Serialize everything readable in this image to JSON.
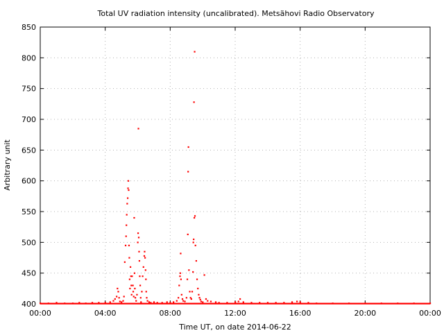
{
  "chart_data": {
    "type": "scatter",
    "title": "Total UV radiation intensity (uncalibrated). Metsähovi Radio Observatory",
    "xlabel": "Time UT, on date 2014-06-22",
    "ylabel": "Arbitrary unit",
    "xlim": [
      0,
      24
    ],
    "ylim": [
      400,
      850
    ],
    "xticks": [
      0,
      4,
      8,
      12,
      16,
      20,
      24
    ],
    "xtick_labels": [
      "00:00",
      "04:00",
      "08:00",
      "12:00",
      "16:00",
      "20:00",
      "00:00"
    ],
    "yticks": [
      400,
      450,
      500,
      550,
      600,
      650,
      700,
      750,
      800,
      850
    ],
    "ytick_labels": [
      "400",
      "450",
      "500",
      "550",
      "600",
      "650",
      "700",
      "750",
      "800",
      "850"
    ],
    "grid": true,
    "color": "#ff0000",
    "series": [
      {
        "points": [
          [
            0.0,
            401
          ],
          [
            0.5,
            401
          ],
          [
            1.0,
            402
          ],
          [
            1.5,
            401
          ],
          [
            2.0,
            401
          ],
          [
            2.4,
            402
          ],
          [
            2.8,
            401
          ],
          [
            3.2,
            402
          ],
          [
            3.6,
            402
          ],
          [
            4.0,
            402
          ],
          [
            4.3,
            403
          ],
          [
            4.5,
            405
          ],
          [
            4.6,
            408
          ],
          [
            4.7,
            412
          ],
          [
            4.75,
            425
          ],
          [
            4.8,
            420
          ],
          [
            4.85,
            410
          ],
          [
            4.9,
            404
          ],
          [
            5.0,
            403
          ],
          [
            5.1,
            405
          ],
          [
            5.15,
            412
          ],
          [
            5.2,
            468
          ],
          [
            5.25,
            495
          ],
          [
            5.28,
            510
          ],
          [
            5.3,
            528
          ],
          [
            5.32,
            545
          ],
          [
            5.35,
            563
          ],
          [
            5.38,
            572
          ],
          [
            5.4,
            588
          ],
          [
            5.42,
            600
          ],
          [
            5.44,
            585
          ],
          [
            5.46,
            495
          ],
          [
            5.48,
            475
          ],
          [
            5.5,
            440
          ],
          [
            5.52,
            425
          ],
          [
            5.55,
            460
          ],
          [
            5.58,
            445
          ],
          [
            5.6,
            430
          ],
          [
            5.62,
            415
          ],
          [
            5.65,
            445
          ],
          [
            5.7,
            430
          ],
          [
            5.72,
            420
          ],
          [
            5.75,
            412
          ],
          [
            5.78,
            540
          ],
          [
            5.8,
            450
          ],
          [
            5.82,
            425
          ],
          [
            5.85,
            410
          ],
          [
            5.9,
            405
          ],
          [
            5.95,
            415
          ],
          [
            6.0,
            500
          ],
          [
            6.02,
            515
          ],
          [
            6.04,
            685
          ],
          [
            6.06,
            508
          ],
          [
            6.08,
            485
          ],
          [
            6.1,
            470
          ],
          [
            6.12,
            445
          ],
          [
            6.15,
            430
          ],
          [
            6.18,
            410
          ],
          [
            6.2,
            403
          ],
          [
            6.25,
            420
          ],
          [
            6.3,
            445
          ],
          [
            6.35,
            460
          ],
          [
            6.4,
            478
          ],
          [
            6.42,
            485
          ],
          [
            6.45,
            475
          ],
          [
            6.48,
            455
          ],
          [
            6.5,
            440
          ],
          [
            6.52,
            420
          ],
          [
            6.55,
            410
          ],
          [
            6.6,
            405
          ],
          [
            6.7,
            403
          ],
          [
            6.8,
            402
          ],
          [
            7.0,
            403
          ],
          [
            7.2,
            402
          ],
          [
            7.5,
            402
          ],
          [
            7.8,
            403
          ],
          [
            8.0,
            402
          ],
          [
            8.2,
            403
          ],
          [
            8.4,
            405
          ],
          [
            8.5,
            410
          ],
          [
            8.55,
            430
          ],
          [
            8.6,
            445
          ],
          [
            8.62,
            450
          ],
          [
            8.64,
            482
          ],
          [
            8.66,
            440
          ],
          [
            8.7,
            415
          ],
          [
            8.75,
            408
          ],
          [
            8.8,
            405
          ],
          [
            8.9,
            404
          ],
          [
            9.0,
            410
          ],
          [
            9.05,
            440
          ],
          [
            9.08,
            513
          ],
          [
            9.1,
            615
          ],
          [
            9.12,
            655
          ],
          [
            9.15,
            455
          ],
          [
            9.2,
            420
          ],
          [
            9.25,
            410
          ],
          [
            9.3,
            408
          ],
          [
            9.35,
            420
          ],
          [
            9.4,
            452
          ],
          [
            9.42,
            500
          ],
          [
            9.44,
            505
          ],
          [
            9.46,
            728
          ],
          [
            9.48,
            540
          ],
          [
            9.5,
            810
          ],
          [
            9.52,
            543
          ],
          [
            9.55,
            495
          ],
          [
            9.6,
            470
          ],
          [
            9.65,
            440
          ],
          [
            9.7,
            425
          ],
          [
            9.75,
            415
          ],
          [
            9.8,
            410
          ],
          [
            9.85,
            407
          ],
          [
            9.9,
            404
          ],
          [
            10.0,
            403
          ],
          [
            10.1,
            447
          ],
          [
            10.2,
            408
          ],
          [
            10.3,
            405
          ],
          [
            10.5,
            404
          ],
          [
            10.8,
            403
          ],
          [
            11.0,
            402
          ],
          [
            11.5,
            402
          ],
          [
            12.0,
            403
          ],
          [
            12.2,
            404
          ],
          [
            12.3,
            408
          ],
          [
            12.5,
            403
          ],
          [
            13.0,
            402
          ],
          [
            13.5,
            402
          ],
          [
            14.0,
            402
          ],
          [
            14.5,
            402
          ],
          [
            15.0,
            402
          ],
          [
            15.5,
            403
          ],
          [
            15.8,
            404
          ],
          [
            16.0,
            403
          ],
          [
            16.5,
            402
          ],
          [
            17.0,
            401
          ],
          [
            18.0,
            401
          ],
          [
            19.0,
            401
          ],
          [
            20.0,
            401
          ],
          [
            21.0,
            401
          ],
          [
            22.0,
            401
          ],
          [
            23.0,
            401
          ],
          [
            24.0,
            401
          ]
        ]
      }
    ]
  }
}
